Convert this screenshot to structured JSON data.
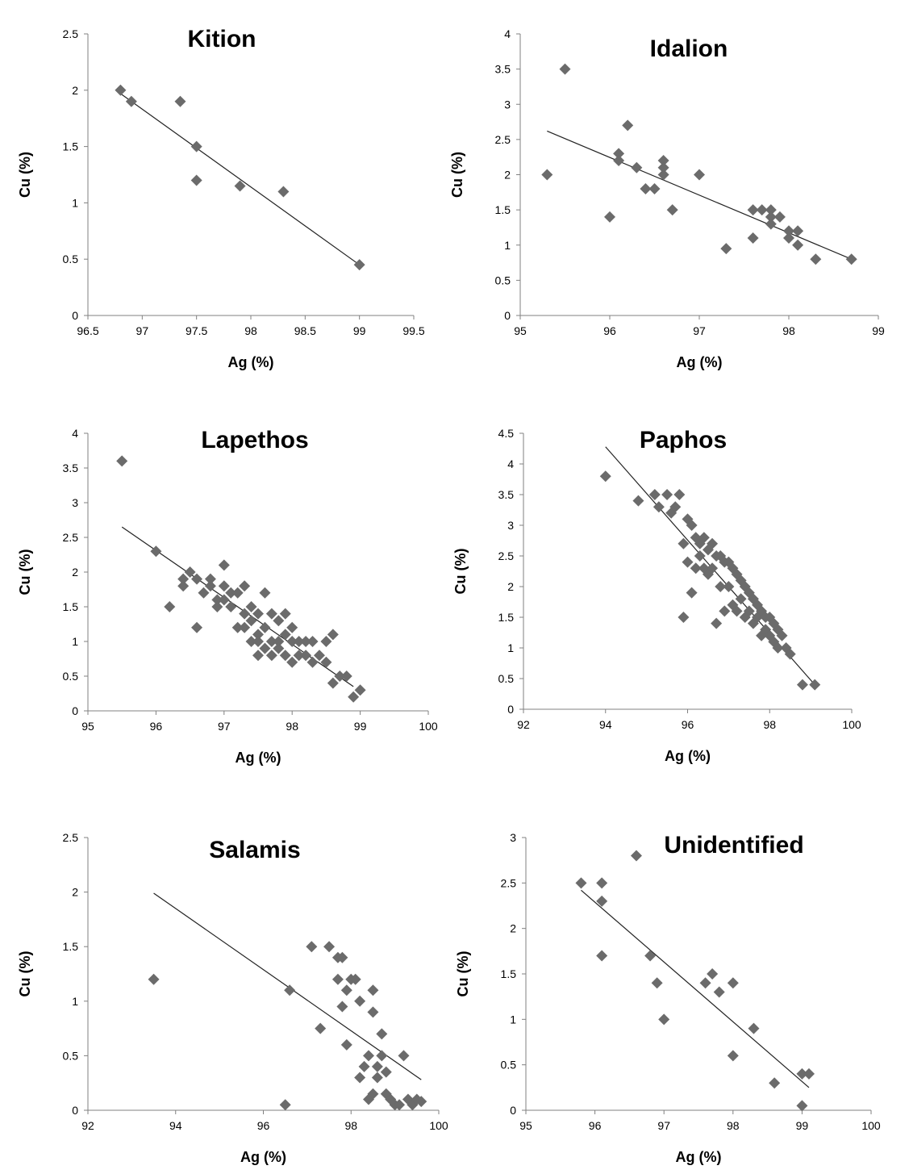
{
  "chart_data": [
    {
      "type": "scatter",
      "title": "Kition",
      "xlabel": "Ag (%)",
      "ylabel": "Cu (%)",
      "xlim": [
        96.5,
        99.5
      ],
      "ylim": [
        0,
        2.5
      ],
      "xticks": [
        96.5,
        97,
        97.5,
        98,
        98.5,
        99,
        99.5
      ],
      "yticks": [
        0,
        0.5,
        1,
        1.5,
        2,
        2.5
      ],
      "x": [
        96.8,
        96.9,
        97.35,
        97.5,
        97.5,
        97.9,
        98.3,
        99.0
      ],
      "y": [
        2.0,
        1.9,
        1.9,
        1.5,
        1.2,
        1.15,
        1.1,
        0.45
      ],
      "trendline": [
        [
          96.8,
          1.97
        ],
        [
          99.0,
          0.45
        ]
      ],
      "grid": false,
      "marker_color": "#6b6b6b"
    },
    {
      "type": "scatter",
      "title": "Idalion",
      "xlabel": "Ag (%)",
      "ylabel": "Cu (%)",
      "xlim": [
        95,
        99
      ],
      "ylim": [
        0,
        4
      ],
      "xticks": [
        95,
        96,
        97,
        98,
        99
      ],
      "yticks": [
        0,
        0.5,
        1,
        1.5,
        2,
        2.5,
        3,
        3.5,
        4
      ],
      "x": [
        95.3,
        95.5,
        96.0,
        96.1,
        96.1,
        96.2,
        96.3,
        96.4,
        96.5,
        96.6,
        96.6,
        96.6,
        96.7,
        97.0,
        97.3,
        97.6,
        97.6,
        97.7,
        97.8,
        97.8,
        97.8,
        97.9,
        98.0,
        98.0,
        98.1,
        98.1,
        98.3,
        98.7
      ],
      "y": [
        2.0,
        3.5,
        1.4,
        2.3,
        2.2,
        2.7,
        2.1,
        1.8,
        1.8,
        2.2,
        2.1,
        2.0,
        1.5,
        2.0,
        0.95,
        1.5,
        1.1,
        1.5,
        1.5,
        1.4,
        1.3,
        1.4,
        1.1,
        1.2,
        1.2,
        1.0,
        0.8,
        0.8
      ],
      "trendline": [
        [
          95.3,
          2.62
        ],
        [
          98.7,
          0.8
        ]
      ],
      "grid": false,
      "marker_color": "#6b6b6b"
    },
    {
      "type": "scatter",
      "title": "Lapethos",
      "xlabel": "Ag (%)",
      "ylabel": "Cu (%)",
      "xlim": [
        95,
        100
      ],
      "ylim": [
        0,
        4
      ],
      "xticks": [
        95,
        96,
        97,
        98,
        99,
        100
      ],
      "yticks": [
        0,
        0.5,
        1,
        1.5,
        2,
        2.5,
        3,
        3.5,
        4
      ],
      "x": [
        95.5,
        96.0,
        96.2,
        96.4,
        96.4,
        96.5,
        96.6,
        96.6,
        96.7,
        96.8,
        96.8,
        96.9,
        96.9,
        97.0,
        97.0,
        97.0,
        97.1,
        97.1,
        97.2,
        97.2,
        97.3,
        97.3,
        97.3,
        97.4,
        97.4,
        97.4,
        97.5,
        97.5,
        97.5,
        97.5,
        97.6,
        97.6,
        97.6,
        97.7,
        97.7,
        97.7,
        97.8,
        97.8,
        97.8,
        97.9,
        97.9,
        97.9,
        98.0,
        98.0,
        98.0,
        98.1,
        98.1,
        98.2,
        98.2,
        98.3,
        98.3,
        98.4,
        98.5,
        98.5,
        98.6,
        98.6,
        98.7,
        98.8,
        98.9,
        99.0
      ],
      "y": [
        3.6,
        2.3,
        1.5,
        1.9,
        1.8,
        2.0,
        1.9,
        1.2,
        1.7,
        1.9,
        1.8,
        1.6,
        1.5,
        2.1,
        1.8,
        1.6,
        1.7,
        1.5,
        1.7,
        1.2,
        1.8,
        1.4,
        1.2,
        1.5,
        1.3,
        1.0,
        1.4,
        1.1,
        1.0,
        0.8,
        1.7,
        1.2,
        0.9,
        1.4,
        1.0,
        0.8,
        1.3,
        1.0,
        0.9,
        1.4,
        1.1,
        0.8,
        1.2,
        1.0,
        0.7,
        1.0,
        0.8,
        1.0,
        0.8,
        1.0,
        0.7,
        0.8,
        1.0,
        0.7,
        1.1,
        0.4,
        0.5,
        0.5,
        0.2,
        0.3
      ],
      "trendline": [
        [
          95.5,
          2.65
        ],
        [
          98.9,
          0.35
        ]
      ],
      "grid": false,
      "marker_color": "#6b6b6b"
    },
    {
      "type": "scatter",
      "title": "Paphos",
      "xlabel": "Ag (%)",
      "ylabel": "Cu (%)",
      "xlim": [
        92,
        100
      ],
      "ylim": [
        0,
        4.5
      ],
      "xticks": [
        92,
        94,
        96,
        98,
        100
      ],
      "yticks": [
        0,
        0.5,
        1,
        1.5,
        2,
        2.5,
        3,
        3.5,
        4,
        4.5
      ],
      "x": [
        94.0,
        94.8,
        95.2,
        95.3,
        95.5,
        95.6,
        95.7,
        95.8,
        95.9,
        95.9,
        96.0,
        96.0,
        96.1,
        96.1,
        96.2,
        96.2,
        96.3,
        96.3,
        96.4,
        96.4,
        96.5,
        96.5,
        96.6,
        96.6,
        96.7,
        96.7,
        96.8,
        96.8,
        96.9,
        96.9,
        97.0,
        97.0,
        97.1,
        97.1,
        97.2,
        97.2,
        97.3,
        97.3,
        97.4,
        97.4,
        97.5,
        97.5,
        97.6,
        97.6,
        97.7,
        97.7,
        97.8,
        97.8,
        97.9,
        97.9,
        98.0,
        98.0,
        98.1,
        98.1,
        98.2,
        98.2,
        98.3,
        98.4,
        98.5,
        98.8,
        99.1
      ],
      "y": [
        3.8,
        3.4,
        3.5,
        3.3,
        3.5,
        3.2,
        3.3,
        3.5,
        2.7,
        1.5,
        3.1,
        2.4,
        3.0,
        1.9,
        2.8,
        2.3,
        2.7,
        2.5,
        2.8,
        2.3,
        2.6,
        2.2,
        2.7,
        2.3,
        2.5,
        1.4,
        2.5,
        2.0,
        2.4,
        1.6,
        2.4,
        2.0,
        2.3,
        1.7,
        2.2,
        1.6,
        2.1,
        1.8,
        2.0,
        1.5,
        1.9,
        1.6,
        1.8,
        1.4,
        1.7,
        1.5,
        1.6,
        1.2,
        1.5,
        1.3,
        1.5,
        1.2,
        1.4,
        1.1,
        1.3,
        1.0,
        1.2,
        1.0,
        0.9,
        0.4,
        0.4
      ],
      "trendline": [
        [
          94.0,
          4.28
        ],
        [
          99.1,
          0.4
        ]
      ],
      "grid": false,
      "marker_color": "#6b6b6b"
    },
    {
      "type": "scatter",
      "title": "Salamis",
      "xlabel": "Ag (%)",
      "ylabel": "Cu (%)",
      "xlim": [
        92,
        100
      ],
      "ylim": [
        0,
        2.5
      ],
      "xticks": [
        92,
        94,
        96,
        98,
        100
      ],
      "yticks": [
        0,
        0.5,
        1,
        1.5,
        2,
        2.5
      ],
      "x": [
        93.5,
        96.5,
        96.6,
        97.1,
        97.3,
        97.5,
        97.7,
        97.7,
        97.8,
        97.8,
        97.9,
        97.9,
        98.0,
        98.1,
        98.2,
        98.2,
        98.3,
        98.4,
        98.4,
        98.5,
        98.5,
        98.5,
        98.6,
        98.6,
        98.7,
        98.7,
        98.8,
        98.8,
        98.9,
        99.0,
        99.1,
        99.2,
        99.3,
        99.4,
        99.5,
        99.6
      ],
      "y": [
        1.2,
        0.05,
        1.1,
        1.5,
        0.75,
        1.5,
        1.4,
        1.2,
        1.4,
        0.95,
        1.1,
        0.6,
        1.2,
        1.2,
        1.0,
        0.3,
        0.4,
        0.5,
        0.1,
        1.1,
        0.9,
        0.15,
        0.4,
        0.3,
        0.7,
        0.5,
        0.35,
        0.15,
        0.1,
        0.05,
        0.05,
        0.5,
        0.1,
        0.05,
        0.1,
        0.08
      ],
      "trendline": [
        [
          93.5,
          1.99
        ],
        [
          99.6,
          0.28
        ]
      ],
      "grid": false,
      "marker_color": "#6b6b6b"
    },
    {
      "type": "scatter",
      "title": "Unidentified",
      "xlabel": "Ag (%)",
      "ylabel": "Cu (%)",
      "xlim": [
        95,
        100
      ],
      "ylim": [
        0,
        3
      ],
      "xticks": [
        95,
        96,
        97,
        98,
        99,
        100
      ],
      "yticks": [
        0,
        0.5,
        1,
        1.5,
        2,
        2.5,
        3
      ],
      "x": [
        95.8,
        96.1,
        96.1,
        96.1,
        96.6,
        96.8,
        96.9,
        97.0,
        97.6,
        97.7,
        97.8,
        98.0,
        98.0,
        98.3,
        98.6,
        99.0,
        99.0,
        99.1
      ],
      "y": [
        2.5,
        2.5,
        2.3,
        1.7,
        2.8,
        1.7,
        1.4,
        1.0,
        1.4,
        1.5,
        1.3,
        1.4,
        0.6,
        0.9,
        0.3,
        0.4,
        0.05,
        0.4
      ],
      "trendline": [
        [
          95.8,
          2.42
        ],
        [
          99.1,
          0.25
        ]
      ],
      "grid": false,
      "marker_color": "#6b6b6b"
    }
  ]
}
